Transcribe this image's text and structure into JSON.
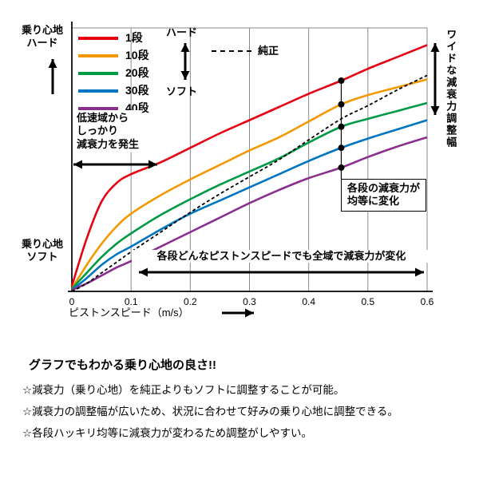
{
  "chart_data": {
    "type": "line",
    "title": "",
    "xlabel": "ピストンスピード（m/s）",
    "ylabel_top": "乗り心地\nハード",
    "ylabel_bottom": "乗り心地\nソフト",
    "xlim": [
      0,
      0.6
    ],
    "x_ticks": [
      0,
      0.1,
      0.2,
      0.3,
      0.4,
      0.5,
      0.6
    ],
    "grid": "vertical",
    "legend_position": "top-left",
    "x": [
      0,
      0.025,
      0.05,
      0.075,
      0.1,
      0.15,
      0.2,
      0.25,
      0.3,
      0.35,
      0.4,
      0.455,
      0.5,
      0.55,
      0.6
    ],
    "series": [
      {
        "name": "1段",
        "color": "#e60012",
        "dashed": false,
        "y": [
          0.02,
          0.2,
          0.34,
          0.41,
          0.445,
          0.49,
          0.545,
          0.6,
          0.65,
          0.7,
          0.75,
          0.8,
          0.845,
          0.89,
          0.935
        ]
      },
      {
        "name": "10段",
        "color": "#f39800",
        "dashed": false,
        "y": [
          0.01,
          0.1,
          0.18,
          0.245,
          0.295,
          0.365,
          0.425,
          0.48,
          0.535,
          0.585,
          0.645,
          0.71,
          0.745,
          0.775,
          0.805
        ]
      },
      {
        "name": "20段",
        "color": "#009944",
        "dashed": false,
        "y": [
          0.01,
          0.07,
          0.13,
          0.18,
          0.22,
          0.29,
          0.35,
          0.405,
          0.455,
          0.505,
          0.565,
          0.625,
          0.655,
          0.685,
          0.715
        ]
      },
      {
        "name": "30段",
        "color": "#0075c2",
        "dashed": false,
        "y": [
          0.005,
          0.05,
          0.1,
          0.14,
          0.17,
          0.235,
          0.295,
          0.345,
          0.395,
          0.445,
          0.495,
          0.545,
          0.58,
          0.615,
          0.65
        ]
      },
      {
        "name": "40段",
        "color": "#8b2f8f",
        "dashed": false,
        "y": [
          0.005,
          0.03,
          0.06,
          0.09,
          0.115,
          0.17,
          0.225,
          0.28,
          0.335,
          0.385,
          0.43,
          0.47,
          0.51,
          0.55,
          0.585
        ]
      },
      {
        "name": "純正",
        "color": "#000000",
        "dashed": true,
        "y": [
          0.0,
          0.03,
          0.07,
          0.11,
          0.15,
          0.225,
          0.3,
          0.37,
          0.435,
          0.5,
          0.575,
          0.655,
          0.705,
          0.765,
          0.82
        ]
      }
    ],
    "marker_x": 0.455
  },
  "legend": {
    "hard": "ハード",
    "soft": "ソフト"
  },
  "annotations": {
    "low_speed": "低速域から\nしっかり\n減衰力を発生",
    "wide_range": "ワイドな減衰力調整幅",
    "equal_change": "各段の減衰力が\n均等に変化",
    "full_range": "各段どんなピストンスピードでも全域で減衰力が変化"
  },
  "summary": {
    "title": "グラフでもわかる乗り心地の良さ!!",
    "bullets": [
      "☆減衰力（乗り心地）を純正よりもソフトに調整することが可能。",
      "☆減衰力の調整幅が広いため、状況に合わせて好みの乗り心地に調整できる。",
      "☆各段ハッキリ均等に減衰力が変わるため調整がしやすい。"
    ]
  }
}
